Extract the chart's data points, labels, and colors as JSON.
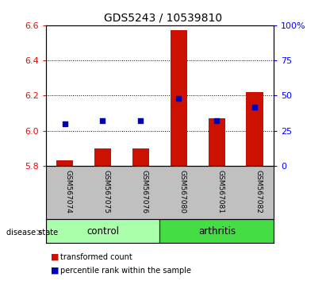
{
  "title": "GDS5243 / 10539810",
  "samples": [
    "GSM567074",
    "GSM567075",
    "GSM567076",
    "GSM567080",
    "GSM567081",
    "GSM567082"
  ],
  "red_bar_values": [
    5.83,
    5.9,
    5.9,
    6.57,
    6.07,
    6.22
  ],
  "blue_values": [
    30,
    32,
    32,
    48,
    32,
    42
  ],
  "baseline": 5.8,
  "ylim_left": [
    5.8,
    6.6
  ],
  "ylim_right": [
    0,
    100
  ],
  "yticks_left": [
    5.8,
    6.0,
    6.2,
    6.4,
    6.6
  ],
  "yticks_right": [
    0,
    25,
    50,
    75,
    100
  ],
  "ytick_labels_right": [
    "0",
    "25",
    "50",
    "75",
    "100%"
  ],
  "group_colors": [
    "#aaffaa",
    "#44dd44"
  ],
  "group_labels": [
    "control",
    "arthritis"
  ],
  "group_ranges": [
    [
      0,
      3
    ],
    [
      3,
      6
    ]
  ],
  "bar_color": "#CC1100",
  "dot_color": "#0000BB",
  "label_area_color": "#C0C0C0",
  "legend_items": [
    {
      "color": "#CC1100",
      "label": "transformed count"
    },
    {
      "color": "#0000BB",
      "label": "percentile rank within the sample"
    }
  ],
  "disease_state_label": "disease state",
  "figsize": [
    4.11,
    3.54
  ],
  "dpi": 100
}
